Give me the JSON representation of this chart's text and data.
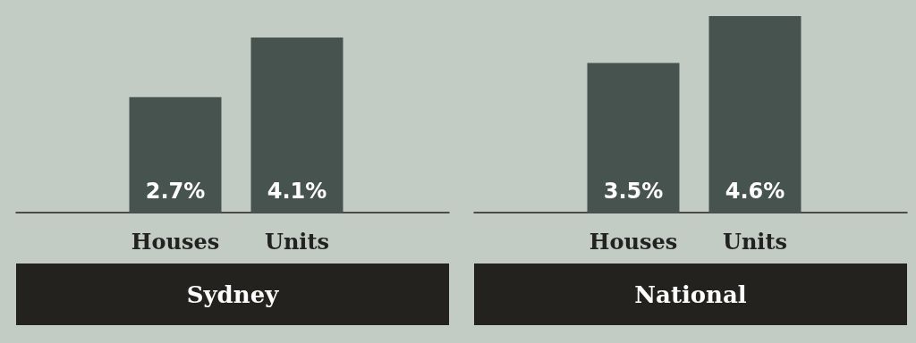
{
  "chart_data": [
    {
      "type": "bar",
      "title": "Sydney",
      "categories": [
        "Houses",
        "Units"
      ],
      "values": [
        2.7,
        4.1
      ],
      "value_labels": [
        "2.7%",
        "4.1%"
      ],
      "color": "#46534e"
    },
    {
      "type": "bar",
      "title": "National",
      "categories": [
        "Houses",
        "Units"
      ],
      "values": [
        3.5,
        4.6
      ],
      "value_labels": [
        "3.5%",
        "4.6%"
      ],
      "color": "#46534e"
    }
  ]
}
